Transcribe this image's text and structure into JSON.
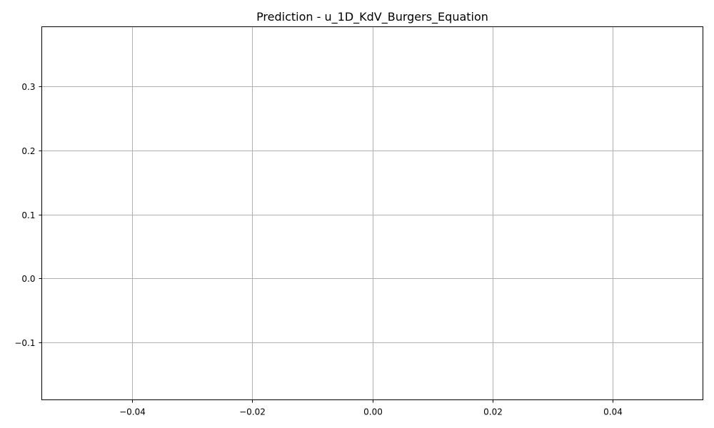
{
  "chart_data": {
    "type": "line",
    "title": "Prediction - u_1D_KdV_Burgers_Equation",
    "xlabel": "",
    "ylabel": "",
    "xlim": [
      -0.055,
      0.055
    ],
    "ylim": [
      -0.19,
      0.3935
    ],
    "x_ticks": [
      -0.04,
      -0.02,
      0.0,
      0.02,
      0.04
    ],
    "x_tick_labels": [
      "−0.04",
      "−0.02",
      "0.00",
      "0.02",
      "0.04"
    ],
    "y_ticks": [
      -0.1,
      0.0,
      0.1,
      0.2,
      0.3
    ],
    "y_tick_labels": [
      "−0.1",
      "0.0",
      "0.1",
      "0.2",
      "0.3"
    ],
    "grid": true,
    "series": []
  },
  "colors": {
    "grid": "#b0b0b0",
    "axes": "#000000",
    "background": "#ffffff"
  }
}
